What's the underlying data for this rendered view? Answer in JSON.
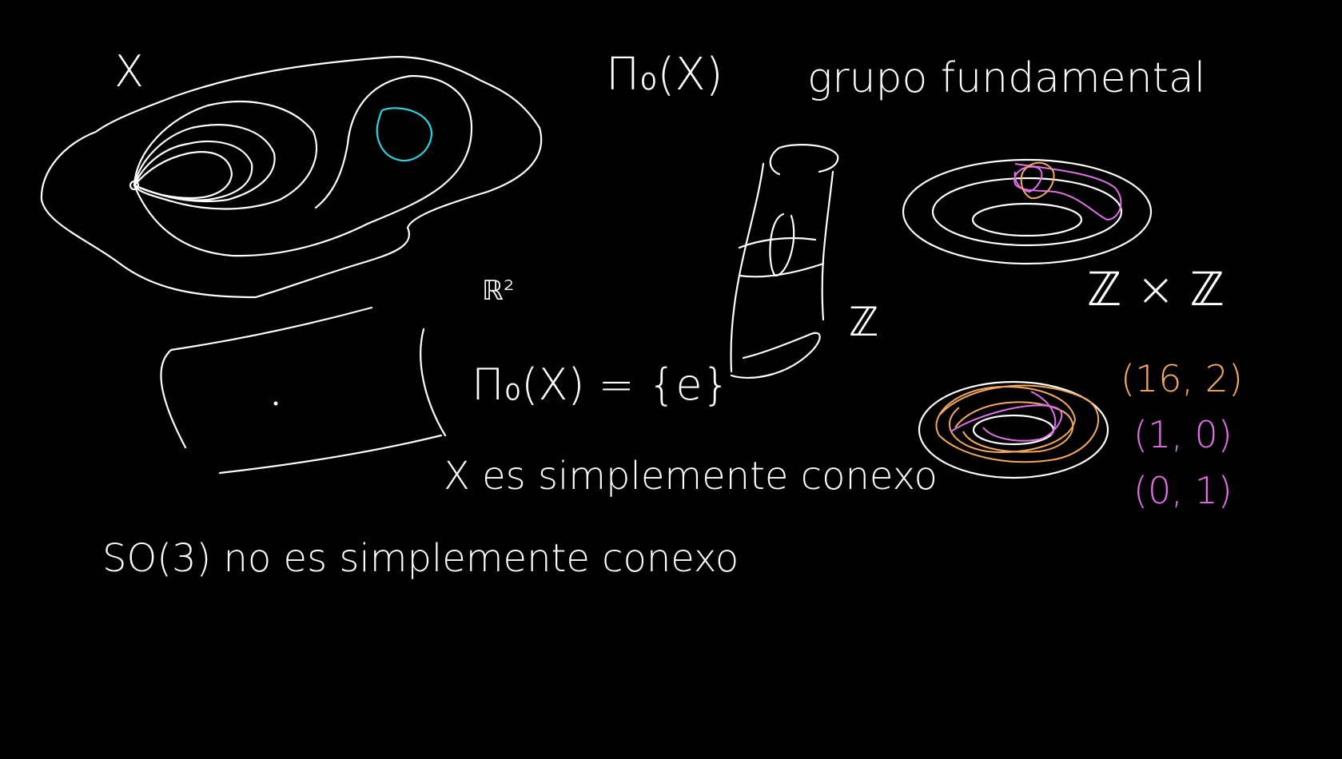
{
  "board": {
    "background": "#000000",
    "ink_colors": {
      "main": "#ffffff",
      "cyan": "#2ad4e0",
      "pink": "#e070e6",
      "orange": "#f3a860"
    }
  },
  "labels": {
    "space_x": "X",
    "pi_title": "Π₀(X)",
    "grupo_fundamental": "grupo fundamental",
    "r2": "ℝ²",
    "pi_trivial": "Π₀(X) = {e}",
    "z_single": "ℤ",
    "z_times_z": "ℤ × ℤ",
    "pair_1": "(16, 2)",
    "pair_2": "(1, 0)",
    "pair_3": "(0, 1)",
    "simply_connected": "X es simplemente conexo",
    "so3": "SO(3) no es simplemente conexo"
  }
}
